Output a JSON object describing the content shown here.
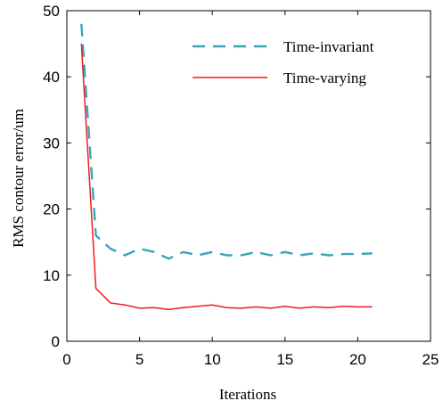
{
  "chart_data": {
    "type": "line",
    "xlabel": "Iterations",
    "ylabel": "RMS contour error/um",
    "xlim": [
      0,
      25
    ],
    "ylim": [
      0,
      50
    ],
    "xticks": [
      0,
      5,
      10,
      15,
      20,
      25
    ],
    "yticks": [
      0,
      10,
      20,
      30,
      40,
      50
    ],
    "xtick_labels": [
      "0",
      "5",
      "10",
      "15",
      "20",
      "25"
    ],
    "ytick_labels": [
      "0",
      "10",
      "20",
      "30",
      "40",
      "50"
    ],
    "grid": false,
    "legend_position": "top-right",
    "x": [
      1,
      2,
      3,
      4,
      5,
      6,
      7,
      8,
      9,
      10,
      11,
      12,
      13,
      14,
      15,
      16,
      17,
      18,
      19,
      20,
      21
    ],
    "series": [
      {
        "name": "Time-invariant",
        "color": "#3aa4b8",
        "style": "dashed",
        "values": [
          48,
          16,
          14,
          13,
          14,
          13.5,
          12.5,
          13.5,
          13,
          13.5,
          13,
          13,
          13.5,
          13,
          13.5,
          13,
          13.3,
          13,
          13.2,
          13.2,
          13.3
        ]
      },
      {
        "name": "Time-varying",
        "color": "#ee1c1c",
        "style": "solid",
        "values": [
          45,
          8,
          5.8,
          5.5,
          5,
          5.1,
          4.8,
          5.1,
          5.3,
          5.5,
          5.1,
          5,
          5.2,
          5,
          5.3,
          5,
          5.2,
          5.1,
          5.3,
          5.2,
          5.2
        ]
      }
    ]
  }
}
